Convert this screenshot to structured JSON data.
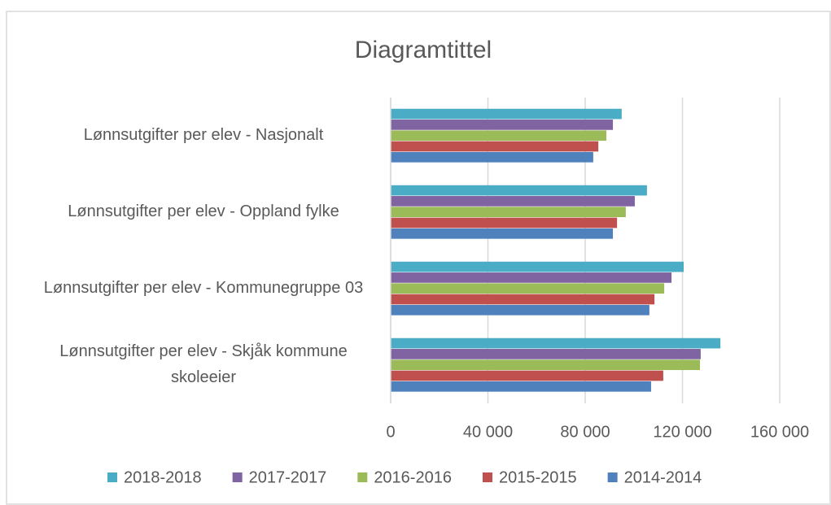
{
  "chart_data": {
    "type": "bar",
    "orientation": "horizontal",
    "title": "Diagramtittel",
    "categories": [
      "Lønnsutgifter per elev - Nasjonalt",
      "Lønnsutgifter per elev - Oppland fylke",
      "Lønnsutgifter per elev - Kommunegruppe 03",
      "Lønnsutgifter per elev - Skjåk kommune skoleeier"
    ],
    "series": [
      {
        "name": "2018-2018",
        "color": "#4bacc6",
        "values": [
          95000,
          105400,
          120500,
          135600
        ]
      },
      {
        "name": "2017-2017",
        "color": "#8064a2",
        "values": [
          91400,
          100400,
          115500,
          127500
        ]
      },
      {
        "name": "2016-2016",
        "color": "#9bbb59",
        "values": [
          88700,
          96700,
          112500,
          127200
        ]
      },
      {
        "name": "2015-2015",
        "color": "#c0504d",
        "values": [
          85400,
          93100,
          108500,
          112100
        ]
      },
      {
        "name": "2014-2014",
        "color": "#4f81bd",
        "values": [
          83300,
          91400,
          106400,
          107100
        ]
      }
    ],
    "xlim": [
      0,
      160000
    ],
    "xticks": [
      0,
      {
        "value": 40000,
        "label": "40 000"
      },
      {
        "value": 80000,
        "label": "80 000"
      },
      {
        "value": 120000,
        "label": "120 000"
      },
      {
        "value": 160000,
        "label": "160 000"
      }
    ],
    "grid": true,
    "legend": "bottom"
  }
}
